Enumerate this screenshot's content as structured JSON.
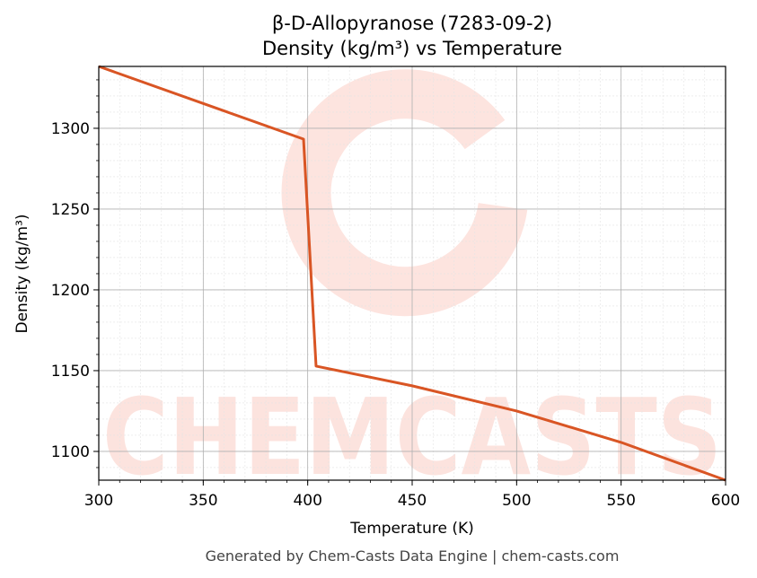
{
  "chart_data": {
    "type": "line",
    "title": "β-D-Allopyranose (7283-09-2)",
    "subtitle": "Density (kg/m³) vs Temperature",
    "x_label": "Temperature (K)",
    "y_label": "Density (kg/m³)",
    "footer": "Generated by Chem-Casts Data Engine | chem-casts.com",
    "watermark": "CHEMCASTS",
    "x": [
      300,
      398,
      404,
      450,
      500,
      550,
      600
    ],
    "series": [
      {
        "name": "Density",
        "color": "#d95524",
        "values": [
          1338.3,
          1293.3,
          1152.8,
          1140.6,
          1125,
          1105.6,
          1082.2
        ]
      }
    ],
    "xlim": [
      300,
      600
    ],
    "xticks": [
      300,
      350,
      400,
      450,
      500,
      550,
      600
    ],
    "ylim": [
      1082.2,
      1338.3
    ],
    "yticks": [
      1100,
      1150,
      1200,
      1250,
      1300
    ],
    "grid": true,
    "minor_grid": true
  }
}
